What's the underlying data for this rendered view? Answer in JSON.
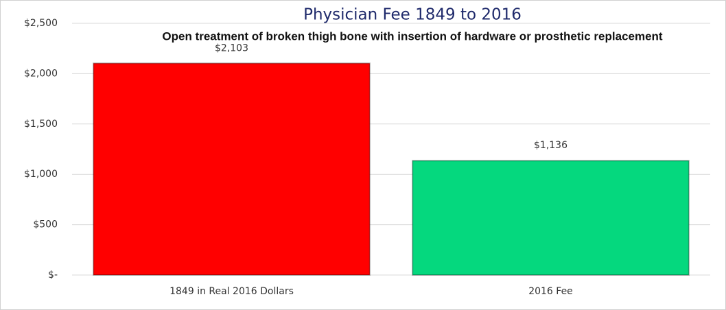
{
  "chart_data": {
    "type": "bar",
    "title": "Physician Fee 1849 to 2016",
    "subtitle": "Open treatment of broken thigh bone with insertion of hardware or prosthetic replacement",
    "categories": [
      "1849 in Real 2016 Dollars",
      "2016 Fee"
    ],
    "values": [
      2103,
      1136
    ],
    "value_labels": [
      "$2,103",
      "$1,136"
    ],
    "colors": [
      "#ff0000",
      "#05d87e"
    ],
    "ylim": [
      0,
      2500
    ],
    "yticks": [
      {
        "value": 0,
        "label": "$-"
      },
      {
        "value": 500,
        "label": "$500"
      },
      {
        "value": 1000,
        "label": "$1,000"
      },
      {
        "value": 1500,
        "label": "$1,500"
      },
      {
        "value": 2000,
        "label": "$2,000"
      },
      {
        "value": 2500,
        "label": "$2,500"
      }
    ],
    "grid": true
  }
}
